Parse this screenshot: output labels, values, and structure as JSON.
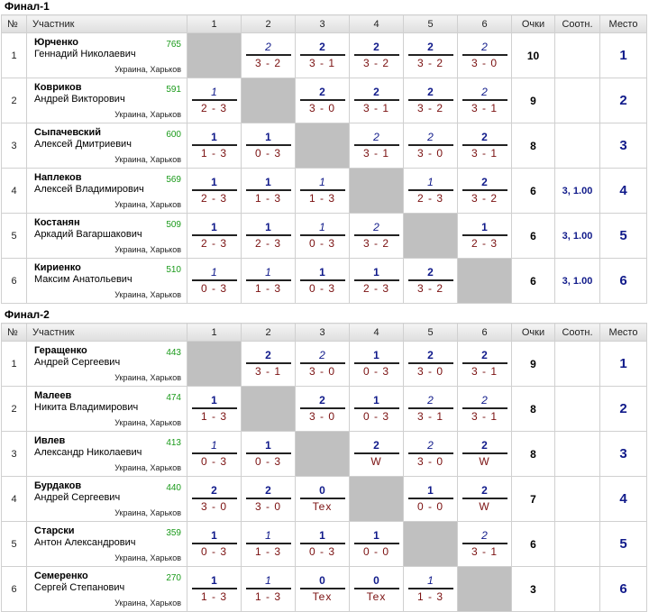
{
  "header": {
    "no": "№",
    "participant": "Участник",
    "cols": [
      "1",
      "2",
      "3",
      "4",
      "5",
      "6"
    ],
    "points": "Очки",
    "ratio": "Соотн.",
    "place": "Место"
  },
  "sections": [
    {
      "title": "Финал-1",
      "rows": [
        {
          "no": "1",
          "last": "Юрченко",
          "first": "Геннадий Николаевич",
          "rating": "765",
          "city": "Украина, Харьков",
          "cells": [
            null,
            {
              "p": "2",
              "s": "3 - 2",
              "t": "draw"
            },
            {
              "p": "2",
              "s": "3 - 1",
              "t": "win"
            },
            {
              "p": "2",
              "s": "3 - 2",
              "t": "win"
            },
            {
              "p": "2",
              "s": "3 - 2",
              "t": "win"
            },
            {
              "p": "2",
              "s": "3 - 0",
              "t": "draw"
            }
          ],
          "points": "10",
          "ratio": "",
          "place": "1"
        },
        {
          "no": "2",
          "last": "Ковриков",
          "first": "Андрей Викторович",
          "rating": "591",
          "city": "Украина, Харьков",
          "cells": [
            {
              "p": "1",
              "s": "2 - 3",
              "t": "draw"
            },
            null,
            {
              "p": "2",
              "s": "3 - 0",
              "t": "win"
            },
            {
              "p": "2",
              "s": "3 - 1",
              "t": "win"
            },
            {
              "p": "2",
              "s": "3 - 2",
              "t": "win"
            },
            {
              "p": "2",
              "s": "3 - 1",
              "t": "draw"
            }
          ],
          "points": "9",
          "ratio": "",
          "place": "2"
        },
        {
          "no": "3",
          "last": "Сыпачевский",
          "first": "Алексей Дмитриевич",
          "rating": "600",
          "city": "Украина, Харьков",
          "cells": [
            {
              "p": "1",
              "s": "1 - 3",
              "t": "win"
            },
            {
              "p": "1",
              "s": "0 - 3",
              "t": "win"
            },
            null,
            {
              "p": "2",
              "s": "3 - 1",
              "t": "draw"
            },
            {
              "p": "2",
              "s": "3 - 0",
              "t": "draw"
            },
            {
              "p": "2",
              "s": "3 - 1",
              "t": "win"
            }
          ],
          "points": "8",
          "ratio": "",
          "place": "3"
        },
        {
          "no": "4",
          "last": "Наплеков",
          "first": "Алексей Владимирович",
          "rating": "569",
          "city": "Украина, Харьков",
          "cells": [
            {
              "p": "1",
              "s": "2 - 3",
              "t": "win"
            },
            {
              "p": "1",
              "s": "1 - 3",
              "t": "win"
            },
            {
              "p": "1",
              "s": "1 - 3",
              "t": "draw"
            },
            null,
            {
              "p": "1",
              "s": "2 - 3",
              "t": "draw"
            },
            {
              "p": "2",
              "s": "3 - 2",
              "t": "win"
            }
          ],
          "points": "6",
          "ratio": "3, 1.00",
          "place": "4"
        },
        {
          "no": "5",
          "last": "Костанян",
          "first": "Аркадий Вагаршакович",
          "rating": "509",
          "city": "Украина, Харьков",
          "cells": [
            {
              "p": "1",
              "s": "2 - 3",
              "t": "win"
            },
            {
              "p": "1",
              "s": "2 - 3",
              "t": "win"
            },
            {
              "p": "1",
              "s": "0 - 3",
              "t": "draw"
            },
            {
              "p": "2",
              "s": "3 - 2",
              "t": "draw"
            },
            null,
            {
              "p": "1",
              "s": "2 - 3",
              "t": "win"
            }
          ],
          "points": "6",
          "ratio": "3, 1.00",
          "place": "5"
        },
        {
          "no": "6",
          "last": "Кириенко",
          "first": "Максим Анатольевич",
          "rating": "510",
          "city": "Украина, Харьков",
          "cells": [
            {
              "p": "1",
              "s": "0 - 3",
              "t": "draw"
            },
            {
              "p": "1",
              "s": "1 - 3",
              "t": "draw"
            },
            {
              "p": "1",
              "s": "0 - 3",
              "t": "win"
            },
            {
              "p": "1",
              "s": "2 - 3",
              "t": "win"
            },
            {
              "p": "2",
              "s": "3 - 2",
              "t": "win"
            },
            null
          ],
          "points": "6",
          "ratio": "3, 1.00",
          "place": "6"
        }
      ]
    },
    {
      "title": "Финал-2",
      "rows": [
        {
          "no": "1",
          "last": "Геращенко",
          "first": "Андрей Сергеевич",
          "rating": "443",
          "city": "Украина, Харьков",
          "cells": [
            null,
            {
              "p": "2",
              "s": "3 - 1",
              "t": "win"
            },
            {
              "p": "2",
              "s": "3 - 0",
              "t": "draw"
            },
            {
              "p": "1",
              "s": "0 - 3",
              "t": "win"
            },
            {
              "p": "2",
              "s": "3 - 0",
              "t": "win"
            },
            {
              "p": "2",
              "s": "3 - 1",
              "t": "win"
            }
          ],
          "points": "9",
          "ratio": "",
          "place": "1"
        },
        {
          "no": "2",
          "last": "Малеев",
          "first": "Никита Владимирович",
          "rating": "474",
          "city": "Украина, Харьков",
          "cells": [
            {
              "p": "1",
              "s": "1 - 3",
              "t": "win"
            },
            null,
            {
              "p": "2",
              "s": "3 - 0",
              "t": "win"
            },
            {
              "p": "1",
              "s": "0 - 3",
              "t": "win"
            },
            {
              "p": "2",
              "s": "3 - 1",
              "t": "draw"
            },
            {
              "p": "2",
              "s": "3 - 1",
              "t": "draw"
            }
          ],
          "points": "8",
          "ratio": "",
          "place": "2"
        },
        {
          "no": "3",
          "last": "Ивлев",
          "first": "Александр Николаевич",
          "rating": "413",
          "city": "Украина, Харьков",
          "cells": [
            {
              "p": "1",
              "s": "0 - 3",
              "t": "draw"
            },
            {
              "p": "1",
              "s": "0 - 3",
              "t": "win"
            },
            null,
            {
              "p": "2",
              "s": "W",
              "t": "win"
            },
            {
              "p": "2",
              "s": "3 - 0",
              "t": "draw"
            },
            {
              "p": "2",
              "s": "W",
              "t": "win"
            }
          ],
          "points": "8",
          "ratio": "",
          "place": "3"
        },
        {
          "no": "4",
          "last": "Бурдаков",
          "first": "Андрей Сергеевич",
          "rating": "440",
          "city": "Украина, Харьков",
          "cells": [
            {
              "p": "2",
              "s": "3 - 0",
              "t": "win"
            },
            {
              "p": "2",
              "s": "3 - 0",
              "t": "win"
            },
            {
              "p": "0",
              "s": "Tex",
              "t": "win"
            },
            null,
            {
              "p": "1",
              "s": "0 - 0",
              "t": "win"
            },
            {
              "p": "2",
              "s": "W",
              "t": "win"
            }
          ],
          "points": "7",
          "ratio": "",
          "place": "4"
        },
        {
          "no": "5",
          "last": "Старски",
          "first": "Антон Александрович",
          "rating": "359",
          "city": "Украина, Харьков",
          "cells": [
            {
              "p": "1",
              "s": "0 - 3",
              "t": "win"
            },
            {
              "p": "1",
              "s": "1 - 3",
              "t": "draw"
            },
            {
              "p": "1",
              "s": "0 - 3",
              "t": "win"
            },
            {
              "p": "1",
              "s": "0 - 0",
              "t": "win"
            },
            null,
            {
              "p": "2",
              "s": "3 - 1",
              "t": "draw"
            }
          ],
          "points": "6",
          "ratio": "",
          "place": "5"
        },
        {
          "no": "6",
          "last": "Семеренко",
          "first": "Сергей Степанович",
          "rating": "270",
          "city": "Украина, Харьков",
          "cells": [
            {
              "p": "1",
              "s": "1 - 3",
              "t": "win"
            },
            {
              "p": "1",
              "s": "1 - 3",
              "t": "draw"
            },
            {
              "p": "0",
              "s": "Tex",
              "t": "win"
            },
            {
              "p": "0",
              "s": "Tex",
              "t": "win"
            },
            {
              "p": "1",
              "s": "1 - 3",
              "t": "draw"
            },
            null
          ],
          "points": "3",
          "ratio": "",
          "place": "6"
        }
      ]
    }
  ]
}
